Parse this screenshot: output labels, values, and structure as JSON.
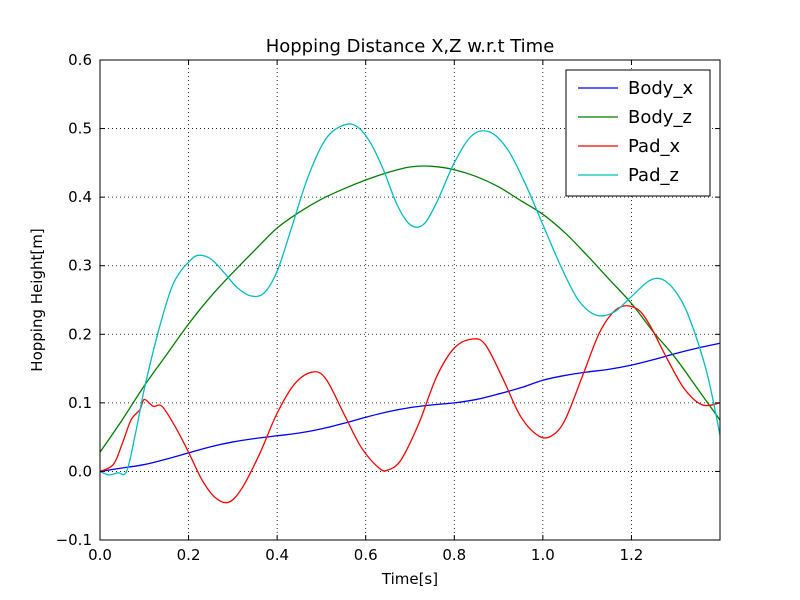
{
  "chart_data": {
    "type": "line",
    "title": "Hopping Distance X,Z w.r.t Time",
    "xlabel": "Time[s]",
    "ylabel": "Hopping Height[m]",
    "xlim": [
      0.0,
      1.4
    ],
    "ylim": [
      -0.1,
      0.6
    ],
    "xticks": [
      0.0,
      0.2,
      0.4,
      0.6,
      0.8,
      1.0,
      1.2
    ],
    "xtick_labels": [
      "0.0",
      "0.2",
      "0.4",
      "0.6",
      "0.8",
      "1.0",
      "1.2"
    ],
    "yticks": [
      -0.1,
      0.0,
      0.1,
      0.2,
      0.3,
      0.4,
      0.5,
      0.6
    ],
    "ytick_labels": [
      "−0.1",
      "0.0",
      "0.1",
      "0.2",
      "0.3",
      "0.4",
      "0.5",
      "0.6"
    ],
    "grid": true,
    "legend_position": "top-right",
    "series": [
      {
        "name": "Body_x",
        "color": "#0000ff",
        "x": [
          0.0,
          0.05,
          0.1,
          0.15,
          0.2,
          0.25,
          0.3,
          0.35,
          0.4,
          0.45,
          0.5,
          0.55,
          0.6,
          0.65,
          0.7,
          0.75,
          0.8,
          0.85,
          0.9,
          0.95,
          1.0,
          1.05,
          1.1,
          1.15,
          1.2,
          1.25,
          1.3,
          1.35,
          1.4
        ],
        "y": [
          0.0,
          0.005,
          0.01,
          0.018,
          0.027,
          0.036,
          0.043,
          0.048,
          0.052,
          0.056,
          0.062,
          0.07,
          0.079,
          0.087,
          0.093,
          0.097,
          0.1,
          0.105,
          0.113,
          0.122,
          0.133,
          0.14,
          0.145,
          0.149,
          0.155,
          0.163,
          0.172,
          0.18,
          0.187
        ]
      },
      {
        "name": "Body_z",
        "color": "#008000",
        "x": [
          0.0,
          0.05,
          0.1,
          0.15,
          0.2,
          0.25,
          0.3,
          0.35,
          0.4,
          0.45,
          0.5,
          0.55,
          0.6,
          0.65,
          0.7,
          0.75,
          0.8,
          0.85,
          0.9,
          0.95,
          1.0,
          1.05,
          1.1,
          1.15,
          1.2,
          1.25,
          1.3,
          1.35,
          1.4
        ],
        "y": [
          0.028,
          0.075,
          0.125,
          0.17,
          0.215,
          0.255,
          0.29,
          0.323,
          0.355,
          0.378,
          0.397,
          0.412,
          0.425,
          0.436,
          0.444,
          0.445,
          0.44,
          0.43,
          0.415,
          0.395,
          0.375,
          0.348,
          0.315,
          0.28,
          0.245,
          0.203,
          0.165,
          0.12,
          0.075
        ]
      },
      {
        "name": "Pad_x",
        "color": "#ff0000",
        "x": [
          0.0,
          0.03,
          0.05,
          0.07,
          0.09,
          0.1,
          0.12,
          0.14,
          0.17,
          0.2,
          0.23,
          0.26,
          0.29,
          0.32,
          0.36,
          0.4,
          0.44,
          0.48,
          0.51,
          0.55,
          0.59,
          0.63,
          0.65,
          0.68,
          0.72,
          0.76,
          0.8,
          0.84,
          0.87,
          0.91,
          0.95,
          0.99,
          1.02,
          1.05,
          1.09,
          1.13,
          1.17,
          1.21,
          1.24,
          1.28,
          1.32,
          1.36,
          1.4
        ],
        "y": [
          0.0,
          0.01,
          0.04,
          0.075,
          0.09,
          0.105,
          0.095,
          0.095,
          0.065,
          0.028,
          -0.012,
          -0.038,
          -0.045,
          -0.025,
          0.025,
          0.085,
          0.128,
          0.145,
          0.135,
          0.085,
          0.035,
          0.005,
          0.002,
          0.017,
          0.07,
          0.138,
          0.18,
          0.193,
          0.185,
          0.135,
          0.08,
          0.052,
          0.052,
          0.075,
          0.14,
          0.205,
          0.238,
          0.238,
          0.215,
          0.165,
          0.12,
          0.097,
          0.1
        ]
      },
      {
        "name": "Pad_z",
        "color": "#00bfbf",
        "x": [
          0.0,
          0.02,
          0.04,
          0.06,
          0.08,
          0.1,
          0.13,
          0.16,
          0.18,
          0.2,
          0.22,
          0.25,
          0.28,
          0.31,
          0.34,
          0.37,
          0.4,
          0.43,
          0.47,
          0.51,
          0.55,
          0.58,
          0.61,
          0.64,
          0.67,
          0.7,
          0.73,
          0.76,
          0.8,
          0.84,
          0.88,
          0.92,
          0.96,
          1.0,
          1.04,
          1.08,
          1.12,
          1.16,
          1.2,
          1.24,
          1.27,
          1.3,
          1.33,
          1.37,
          1.4
        ],
        "y": [
          0.0,
          -0.005,
          -0.002,
          0.0,
          0.055,
          0.12,
          0.2,
          0.265,
          0.29,
          0.305,
          0.315,
          0.31,
          0.29,
          0.268,
          0.256,
          0.26,
          0.292,
          0.35,
          0.43,
          0.485,
          0.505,
          0.503,
          0.48,
          0.44,
          0.39,
          0.36,
          0.36,
          0.392,
          0.45,
          0.49,
          0.495,
          0.47,
          0.42,
          0.36,
          0.3,
          0.25,
          0.228,
          0.232,
          0.255,
          0.278,
          0.28,
          0.262,
          0.225,
          0.145,
          0.053
        ]
      }
    ]
  }
}
